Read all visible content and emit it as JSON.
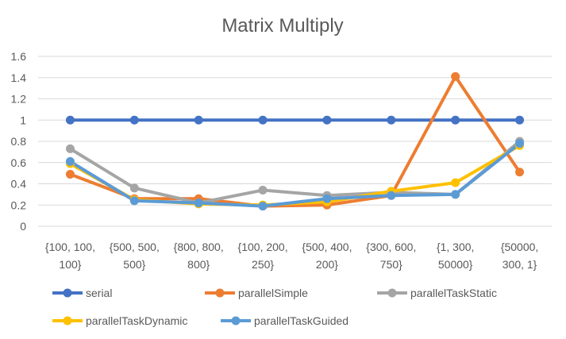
{
  "chart_data": {
    "type": "line",
    "title": "Matrix Multiply",
    "xlabel": "",
    "ylabel": "",
    "categories": [
      [
        "{100, 100,",
        "100}"
      ],
      [
        "{500, 500,",
        "500}"
      ],
      [
        "{800, 800,",
        "800}"
      ],
      [
        "{100, 200,",
        "250}"
      ],
      [
        "{500, 400,",
        "200}"
      ],
      [
        "{300, 600,",
        "750}"
      ],
      [
        "{1, 300,",
        "50000}"
      ],
      [
        "{50000,",
        "300, 1}"
      ]
    ],
    "ylim": [
      0,
      1.6
    ],
    "yticks": [
      "0",
      "0.2",
      "0.4",
      "0.6",
      "0.8",
      "1",
      "1.2",
      "1.4",
      "1.6"
    ],
    "grid": true,
    "legend_position": "bottom",
    "series": [
      {
        "name": "serial",
        "color": "#4472C4",
        "values": [
          1,
          1,
          1,
          1,
          1,
          1,
          1,
          1
        ]
      },
      {
        "name": "parallelSimple",
        "color": "#ED7D31",
        "values": [
          0.49,
          0.26,
          0.26,
          0.19,
          0.2,
          0.29,
          1.41,
          0.51
        ]
      },
      {
        "name": "parallelTaskStatic",
        "color": "#A5A5A5",
        "values": [
          0.73,
          0.36,
          0.22,
          0.34,
          0.29,
          0.32,
          0.3,
          0.8
        ]
      },
      {
        "name": "parallelTaskDynamic",
        "color": "#FFC000",
        "values": [
          0.59,
          0.25,
          0.21,
          0.2,
          0.23,
          0.33,
          0.41,
          0.76
        ]
      },
      {
        "name": "parallelTaskGuided",
        "color": "#5B9BD5",
        "values": [
          0.61,
          0.24,
          0.22,
          0.19,
          0.26,
          0.29,
          0.3,
          0.78
        ]
      }
    ]
  }
}
